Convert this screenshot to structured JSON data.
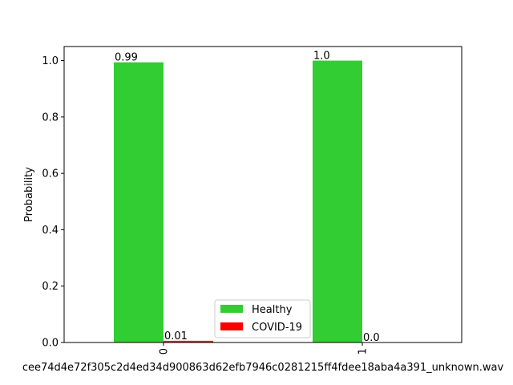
{
  "chart_data": {
    "type": "bar",
    "title": "",
    "xlabel": "cee74d4e72f305c2d4ed34d900863d62efb7946c0281215ff4fdee18aba4a391_unknown.wav",
    "ylabel": "Probability",
    "categories": [
      "0",
      "1"
    ],
    "series": [
      {
        "name": "Healthy",
        "color": "#32cd32",
        "values": [
          0.994,
          1.0
        ],
        "labels": [
          "0.99",
          "1.0"
        ]
      },
      {
        "name": "COVID-19",
        "color": "#ff0000",
        "values": [
          0.006,
          0.0
        ],
        "labels": [
          "0.01",
          "0.0"
        ]
      }
    ],
    "ylim": [
      0,
      1.05
    ],
    "yticks": [
      "0.0",
      "0.2",
      "0.4",
      "0.6",
      "0.8",
      "1.0"
    ],
    "grid": false,
    "legend_position": "bottom-center"
  }
}
